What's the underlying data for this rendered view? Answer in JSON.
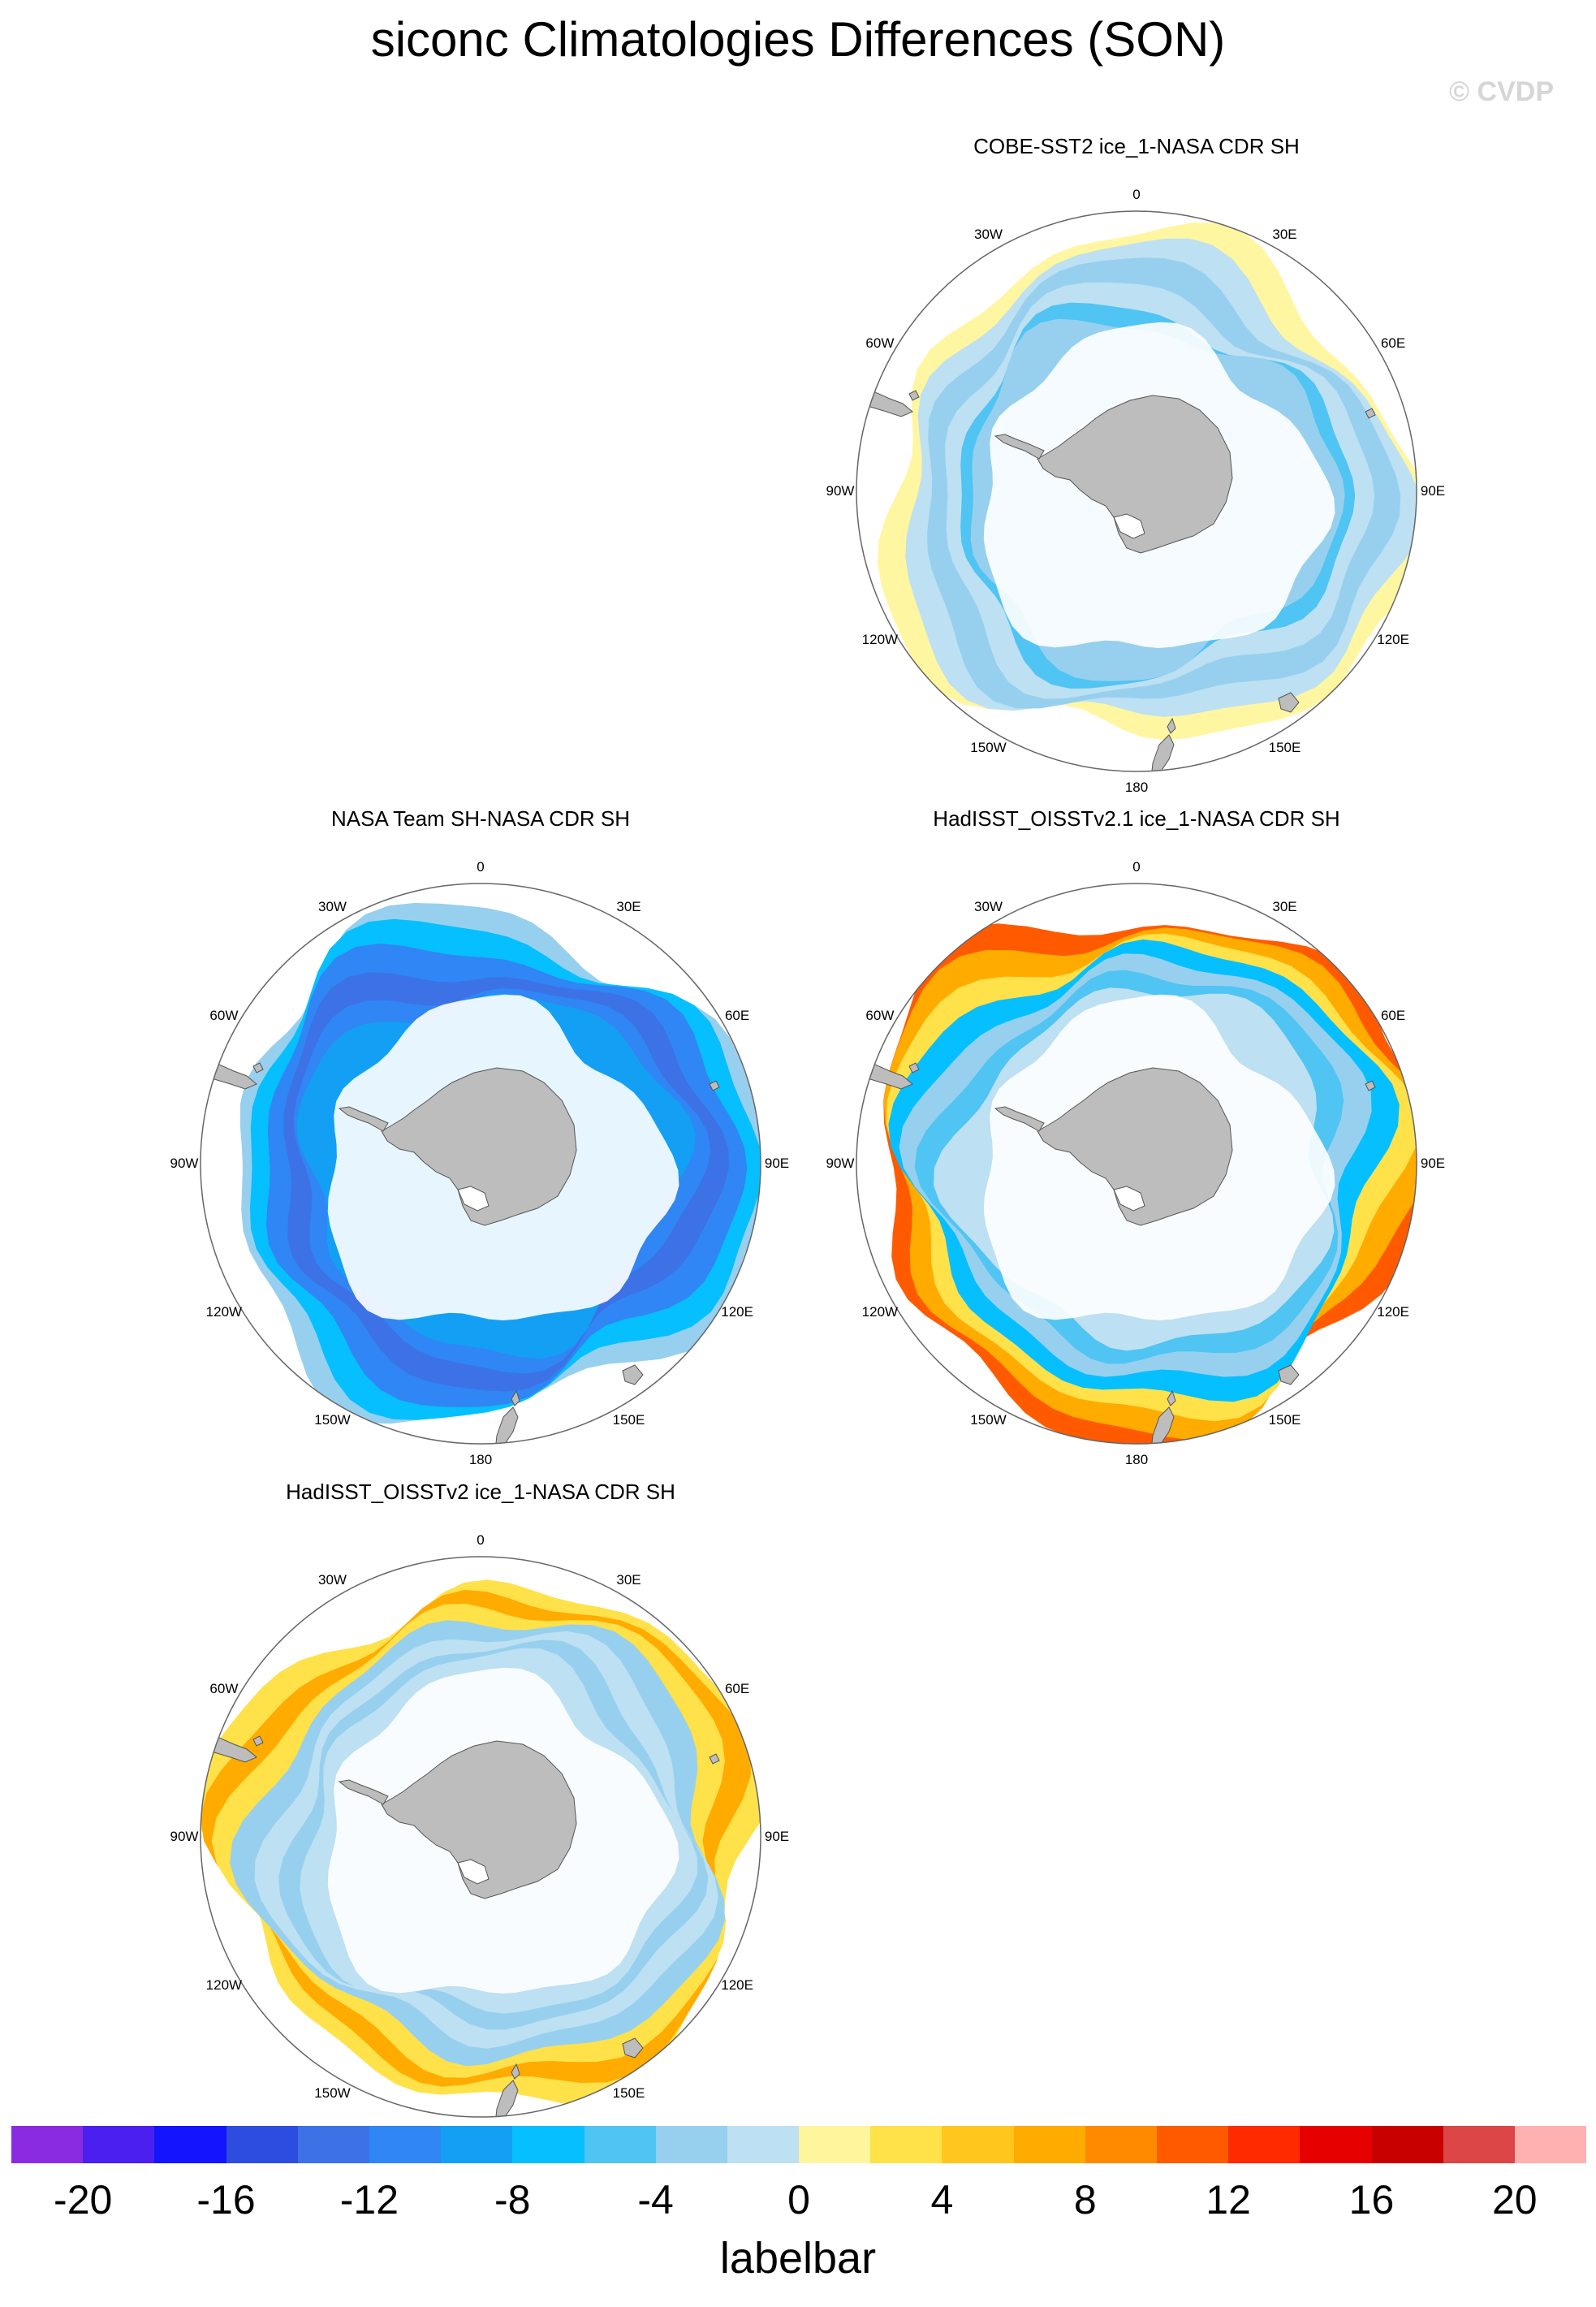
{
  "title": "siconc Climatologies Differences (SON)",
  "watermark": "© CVDP",
  "panels": [
    {
      "id": "p1",
      "title": "COBE-SST2 ice_1-NASA CDR SH",
      "pattern": "light_negative"
    },
    {
      "id": "p2",
      "title": "NASA Team SH-NASA CDR SH",
      "pattern": "strong_negative"
    },
    {
      "id": "p3",
      "title": "HadISST_OISSTv2.1 ice_1-NASA CDR SH",
      "pattern": "positive_rim"
    },
    {
      "id": "p4",
      "title": "HadISST_OISSTv2 ice_1-NASA CDR SH",
      "pattern": "moderate_positive_rim"
    }
  ],
  "lon_labels": [
    "0",
    "30E",
    "60E",
    "90E",
    "120E",
    "150E",
    "180",
    "150W",
    "120W",
    "90W",
    "60W",
    "30W"
  ],
  "colorbar": {
    "colors": [
      "#8a2be2",
      "#4b1ff0",
      "#1414ff",
      "#2d4de0",
      "#3c72e6",
      "#2f86f4",
      "#13a0f4",
      "#06bfff",
      "#50c4f2",
      "#97d0ee",
      "#bde0f2",
      "#fff59d",
      "#ffe14a",
      "#ffc61e",
      "#ffab00",
      "#ff8a00",
      "#ff5a00",
      "#ff2a00",
      "#e60000",
      "#c80000",
      "#dc4646",
      "#ffb0b0"
    ],
    "tick_labels": [
      "-20",
      "-16",
      "-12",
      "-8",
      "-4",
      "0",
      "4",
      "8",
      "12",
      "16",
      "20"
    ],
    "label": "labelbar"
  }
}
